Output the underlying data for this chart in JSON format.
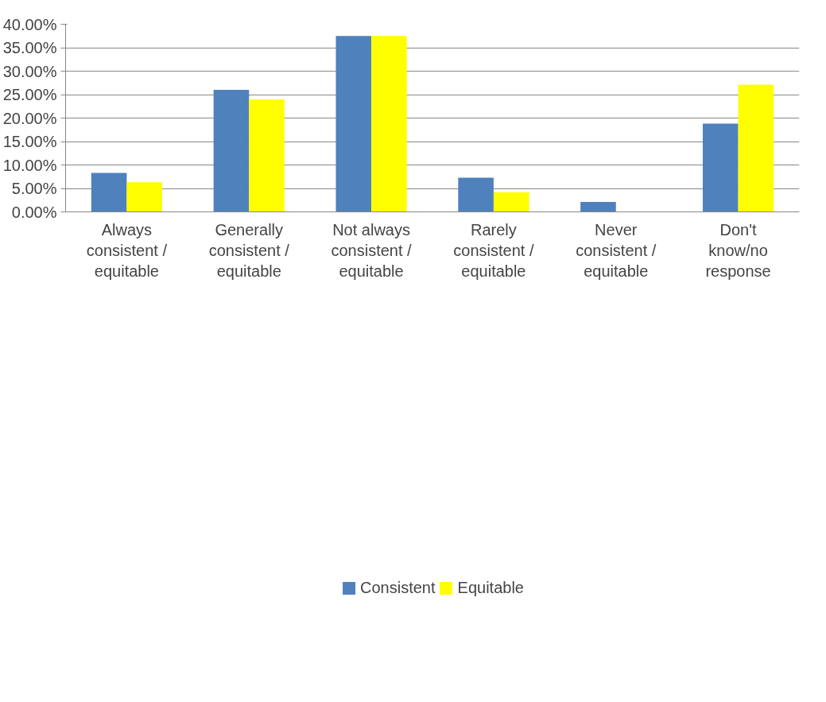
{
  "chart_data": {
    "type": "bar",
    "categories": [
      "Always consistent / equitable",
      "Generally consistent / equitable",
      "Not always consistent / equitable",
      "Rarely consistent / equitable",
      "Never consistent / equitable",
      "Don't know/no response"
    ],
    "series": [
      {
        "name": "Consistent",
        "color": "#4f81bd",
        "values": [
          8.3,
          26.0,
          37.5,
          7.3,
          2.1,
          18.8
        ]
      },
      {
        "name": "Equitable",
        "color": "#ffff00",
        "values": [
          6.3,
          24.0,
          37.5,
          4.2,
          0,
          27.1
        ]
      }
    ],
    "ylim": [
      0,
      40
    ],
    "yticks": [
      {
        "value": 0,
        "label": "0.00%"
      },
      {
        "value": 5,
        "label": "5.00%"
      },
      {
        "value": 10,
        "label": "10.00%"
      },
      {
        "value": 15,
        "label": "15.00%"
      },
      {
        "value": 20,
        "label": "20.00%"
      },
      {
        "value": 25,
        "label": "25.00%"
      },
      {
        "value": 30,
        "label": "30.00%"
      },
      {
        "value": 35,
        "label": "35.00%"
      },
      {
        "value": 40,
        "label": "40.00%"
      }
    ],
    "grid": "y",
    "legend": "bottom"
  }
}
